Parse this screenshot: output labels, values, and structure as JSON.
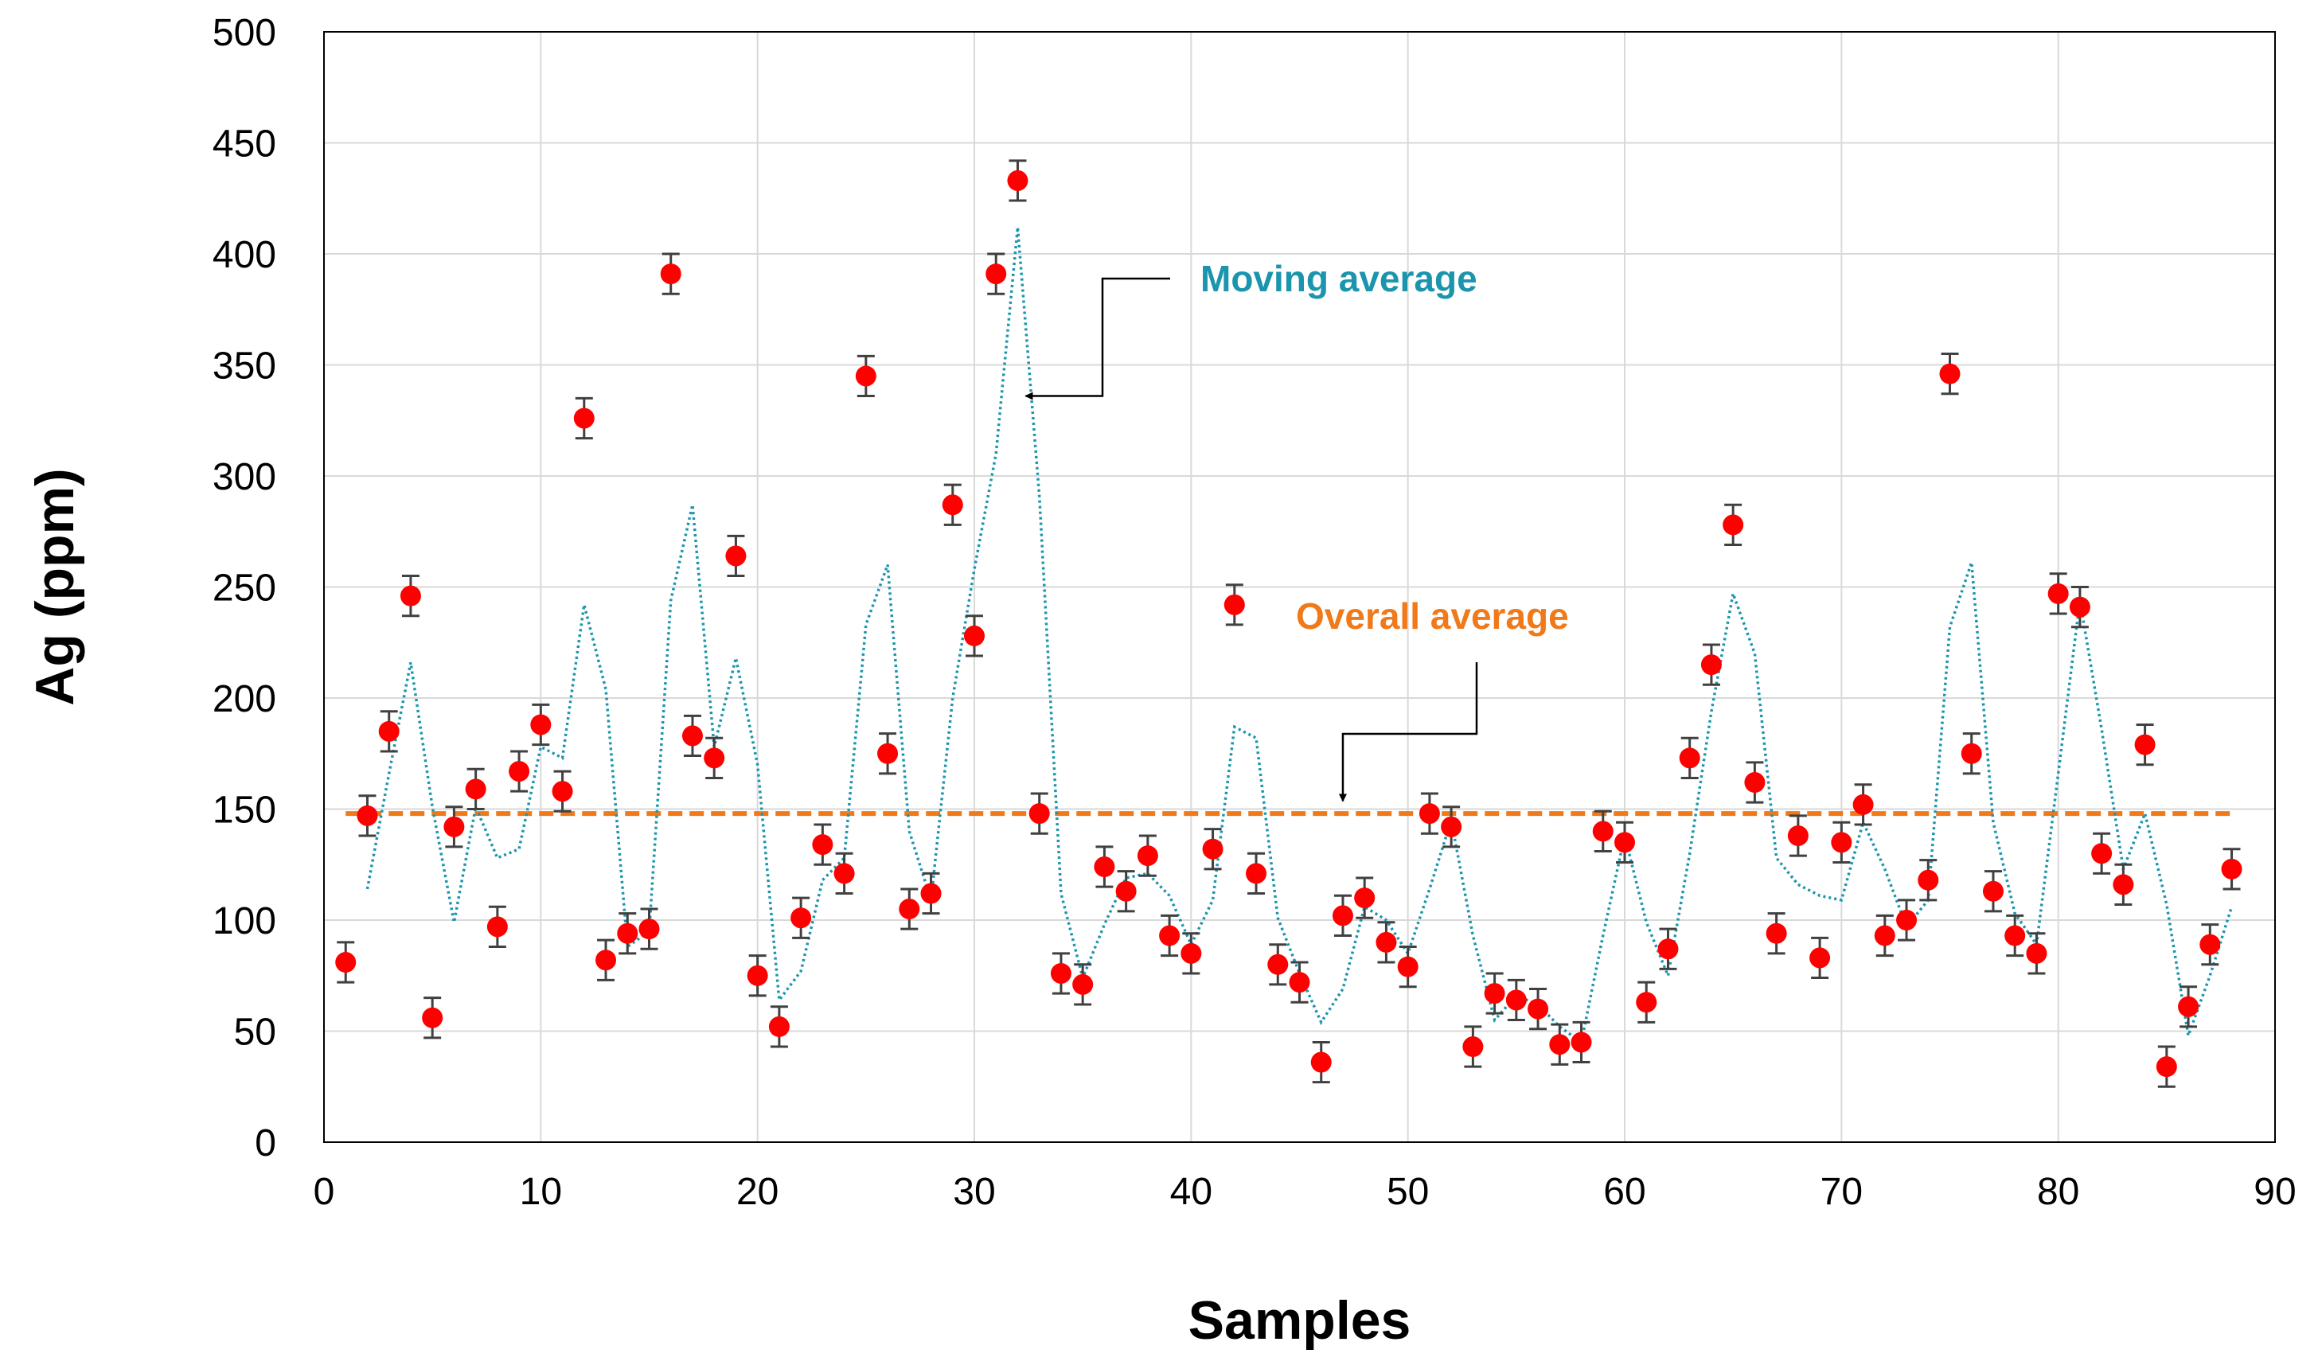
{
  "chart_data": {
    "type": "scatter",
    "xlabel": "Samples",
    "ylabel": "Ag (ppm)",
    "xlim": [
      0,
      90
    ],
    "ylim": [
      0,
      500
    ],
    "xticks": [
      0,
      10,
      20,
      30,
      40,
      50,
      60,
      70,
      80,
      90
    ],
    "yticks": [
      0,
      50,
      100,
      150,
      200,
      250,
      300,
      350,
      400,
      450,
      500
    ],
    "grid": true,
    "error_bar_ppm": 9,
    "colors": {
      "points": "#ff0000",
      "error_bars": "#404040",
      "moving_average": "#1a95ad",
      "overall_average": "#f07a1a",
      "grid": "#d9d9d9"
    },
    "series": [
      {
        "values": [
          [
            1,
            81
          ],
          [
            2,
            147
          ],
          [
            3,
            185
          ],
          [
            4,
            246
          ],
          [
            5,
            56
          ],
          [
            6,
            142
          ],
          [
            7,
            159
          ],
          [
            8,
            97
          ],
          [
            9,
            167
          ],
          [
            10,
            188
          ],
          [
            11,
            158
          ],
          [
            12,
            326
          ],
          [
            13,
            82
          ],
          [
            14,
            94
          ],
          [
            15,
            96
          ],
          [
            16,
            391
          ],
          [
            17,
            183
          ],
          [
            18,
            173
          ],
          [
            19,
            264
          ],
          [
            20,
            75
          ],
          [
            21,
            52
          ],
          [
            22,
            101
          ],
          [
            23,
            134
          ],
          [
            24,
            121
          ],
          [
            25,
            345
          ],
          [
            26,
            175
          ],
          [
            27,
            105
          ],
          [
            28,
            112
          ],
          [
            29,
            287
          ],
          [
            30,
            228
          ],
          [
            31,
            391
          ],
          [
            32,
            433
          ],
          [
            33,
            148
          ],
          [
            34,
            76
          ],
          [
            35,
            71
          ],
          [
            36,
            124
          ],
          [
            37,
            113
          ],
          [
            38,
            129
          ],
          [
            39,
            93
          ],
          [
            40,
            85
          ],
          [
            41,
            132
          ],
          [
            42,
            242
          ],
          [
            43,
            121
          ],
          [
            44,
            80
          ],
          [
            45,
            72
          ],
          [
            46,
            36
          ],
          [
            47,
            102
          ],
          [
            48,
            110
          ],
          [
            49,
            90
          ],
          [
            50,
            79
          ],
          [
            51,
            148
          ],
          [
            52,
            142
          ],
          [
            53,
            43
          ],
          [
            54,
            67
          ],
          [
            55,
            64
          ],
          [
            56,
            60
          ],
          [
            57,
            44
          ],
          [
            58,
            45
          ],
          [
            59,
            140
          ],
          [
            60,
            135
          ],
          [
            61,
            63
          ],
          [
            62,
            87
          ],
          [
            63,
            173
          ],
          [
            64,
            215
          ],
          [
            65,
            278
          ],
          [
            66,
            162
          ],
          [
            67,
            94
          ],
          [
            68,
            138
          ],
          [
            69,
            83
          ],
          [
            70,
            135
          ],
          [
            71,
            152
          ],
          [
            72,
            93
          ],
          [
            73,
            100
          ],
          [
            74,
            118
          ],
          [
            75,
            346
          ],
          [
            76,
            175
          ],
          [
            77,
            113
          ],
          [
            78,
            93
          ],
          [
            79,
            85
          ],
          [
            80,
            247
          ],
          [
            81,
            241
          ],
          [
            82,
            130
          ],
          [
            83,
            116
          ],
          [
            84,
            179
          ],
          [
            85,
            34
          ],
          [
            86,
            61
          ],
          [
            87,
            89
          ],
          [
            88,
            123
          ]
        ]
      },
      {
        "line": "moving-average",
        "values": [
          [
            2,
            114
          ],
          [
            3,
            166
          ],
          [
            4,
            216
          ],
          [
            5,
            151
          ],
          [
            6,
            99
          ],
          [
            7,
            151
          ],
          [
            8,
            128
          ],
          [
            9,
            132
          ],
          [
            10,
            178
          ],
          [
            11,
            173
          ],
          [
            12,
            242
          ],
          [
            13,
            204
          ],
          [
            14,
            88
          ],
          [
            15,
            95
          ],
          [
            16,
            244
          ],
          [
            17,
            287
          ],
          [
            18,
            178
          ],
          [
            19,
            218
          ],
          [
            20,
            170
          ],
          [
            21,
            64
          ],
          [
            22,
            77
          ],
          [
            23,
            118
          ],
          [
            24,
            128
          ],
          [
            25,
            233
          ],
          [
            26,
            260
          ],
          [
            27,
            140
          ],
          [
            28,
            109
          ],
          [
            29,
            200
          ],
          [
            30,
            258
          ],
          [
            31,
            310
          ],
          [
            32,
            412
          ],
          [
            33,
            291
          ],
          [
            34,
            112
          ],
          [
            35,
            74
          ],
          [
            36,
            98
          ],
          [
            37,
            119
          ],
          [
            38,
            121
          ],
          [
            39,
            111
          ],
          [
            40,
            89
          ],
          [
            41,
            109
          ],
          [
            42,
            187
          ],
          [
            43,
            182
          ],
          [
            44,
            101
          ],
          [
            45,
            76
          ],
          [
            46,
            54
          ],
          [
            47,
            69
          ],
          [
            48,
            106
          ],
          [
            49,
            100
          ],
          [
            50,
            85
          ],
          [
            51,
            114
          ],
          [
            52,
            145
          ],
          [
            53,
            93
          ],
          [
            54,
            55
          ],
          [
            55,
            66
          ],
          [
            56,
            62
          ],
          [
            57,
            52
          ],
          [
            58,
            45
          ],
          [
            59,
            93
          ],
          [
            60,
            138
          ],
          [
            61,
            99
          ],
          [
            62,
            75
          ],
          [
            63,
            130
          ],
          [
            64,
            194
          ],
          [
            65,
            247
          ],
          [
            66,
            220
          ],
          [
            67,
            128
          ],
          [
            68,
            116
          ],
          [
            69,
            111
          ],
          [
            70,
            109
          ],
          [
            71,
            144
          ],
          [
            72,
            123
          ],
          [
            73,
            97
          ],
          [
            74,
            109
          ],
          [
            75,
            232
          ],
          [
            76,
            261
          ],
          [
            77,
            144
          ],
          [
            78,
            103
          ],
          [
            79,
            89
          ],
          [
            80,
            166
          ],
          [
            81,
            244
          ],
          [
            82,
            186
          ],
          [
            83,
            123
          ],
          [
            84,
            148
          ],
          [
            85,
            107
          ],
          [
            86,
            48
          ],
          [
            87,
            75
          ],
          [
            88,
            106
          ]
        ]
      },
      {
        "line": "overall-average",
        "values": [
          [
            1,
            148
          ],
          [
            88,
            148
          ]
        ]
      }
    ],
    "annotations": [
      {
        "text": "Moving average",
        "arrow_to": [
          32,
          336
        ]
      },
      {
        "text": "Overall average",
        "arrow_to": [
          47,
          150
        ]
      }
    ]
  }
}
